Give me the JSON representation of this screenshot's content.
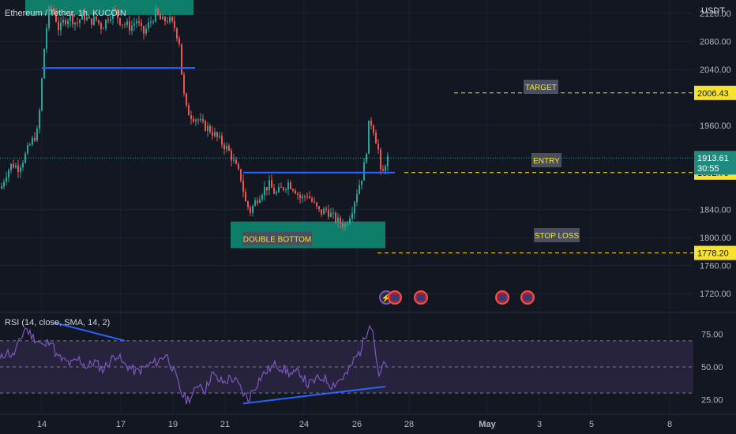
{
  "symbol_title": "Ethereum / Tether, 1h, KUCOIN",
  "currency": "USDT",
  "colors": {
    "background": "#131722",
    "up": "#26a69a",
    "down": "#ef5350",
    "level_line": "#2962ff",
    "dashed": "#f2e22b",
    "zone_fill": "#0e8a73",
    "rsi_line": "#7e57c2",
    "rsi_band": "#2a2540",
    "axis_text": "#b2b5be",
    "label_fill": "#f7e32f"
  },
  "chart_data": [
    {
      "type": "candlestick",
      "title": "Ethereum / Tether, 1h, KUCOIN",
      "ylim": [
        1700,
        2130
      ],
      "y_ticks": [
        "2120.00",
        "2080.00",
        "2040.00",
        "1960.00",
        "1840.00",
        "1800.00",
        "1760.00",
        "1720.00"
      ],
      "x_ticks": [
        "14",
        "17",
        "19",
        "21",
        "24",
        "26",
        "28",
        "May",
        "3",
        "5",
        "8"
      ],
      "current_price": "1913.61",
      "countdown": "30:55",
      "price_path": [
        [
          0,
          1870
        ],
        [
          6,
          1890
        ],
        [
          14,
          1905
        ],
        [
          22,
          1900
        ],
        [
          30,
          1915
        ],
        [
          38,
          1935
        ],
        [
          46,
          1950
        ],
        [
          50,
          1990
        ],
        [
          54,
          2060
        ],
        [
          58,
          2100
        ],
        [
          62,
          2130
        ],
        [
          68,
          2120
        ],
        [
          74,
          2095
        ],
        [
          80,
          2110
        ],
        [
          88,
          2115
        ],
        [
          96,
          2105
        ],
        [
          104,
          2118
        ],
        [
          112,
          2108
        ],
        [
          120,
          2112
        ],
        [
          128,
          2100
        ],
        [
          136,
          2115
        ],
        [
          144,
          2125
        ],
        [
          150,
          2110
        ],
        [
          156,
          2105
        ],
        [
          164,
          2100
        ],
        [
          172,
          2110
        ],
        [
          180,
          2090
        ],
        [
          188,
          2105
        ],
        [
          196,
          2120
        ],
        [
          204,
          2108
        ],
        [
          212,
          2112
        ],
        [
          220,
          2100
        ],
        [
          226,
          2080
        ],
        [
          230,
          2020
        ],
        [
          234,
          1985
        ],
        [
          240,
          1975
        ],
        [
          248,
          1970
        ],
        [
          256,
          1960
        ],
        [
          264,
          1955
        ],
        [
          272,
          1945
        ],
        [
          280,
          1935
        ],
        [
          288,
          1925
        ],
        [
          296,
          1905
        ],
        [
          304,
          1885
        ],
        [
          310,
          1850
        ],
        [
          316,
          1838
        ],
        [
          324,
          1855
        ],
        [
          332,
          1868
        ],
        [
          340,
          1875
        ],
        [
          348,
          1862
        ],
        [
          356,
          1870
        ],
        [
          364,
          1878
        ],
        [
          372,
          1870
        ],
        [
          380,
          1855
        ],
        [
          388,
          1862
        ],
        [
          396,
          1848
        ],
        [
          404,
          1835
        ],
        [
          412,
          1840
        ],
        [
          420,
          1830
        ],
        [
          428,
          1822
        ],
        [
          436,
          1818
        ],
        [
          444,
          1838
        ],
        [
          452,
          1870
        ],
        [
          458,
          1890
        ],
        [
          462,
          1915
        ],
        [
          466,
          1960
        ],
        [
          470,
          1965
        ],
        [
          474,
          1945
        ],
        [
          478,
          1925
        ],
        [
          482,
          1880
        ],
        [
          486,
          1905
        ],
        [
          490,
          1913
        ]
      ],
      "annotations": {
        "resistance": 2042,
        "neckline": 1892.7,
        "top_zone": [
          2120,
          2145
        ],
        "bottom_zone": [
          1785,
          1823
        ],
        "target": "2006.43",
        "entry": "1892.70",
        "stop_loss": "1778.20",
        "target_label": "TARGET",
        "entry_label": "ENTRY",
        "stop_loss_label": "STOP LOSS",
        "zone_label": "DOUBLE BOTTOM"
      }
    },
    {
      "type": "line",
      "title": "RSI (14, close, SMA, 14, 2)",
      "ylim": [
        18,
        88
      ],
      "y_ticks": [
        "75.00",
        "50.00",
        "25.00"
      ],
      "bands": [
        70,
        50,
        30
      ],
      "values_path": [
        [
          0,
          55
        ],
        [
          8,
          62
        ],
        [
          16,
          58
        ],
        [
          24,
          68
        ],
        [
          32,
          80
        ],
        [
          40,
          74
        ],
        [
          48,
          70
        ],
        [
          56,
          65
        ],
        [
          64,
          72
        ],
        [
          72,
          58
        ],
        [
          80,
          55
        ],
        [
          90,
          52
        ],
        [
          100,
          56
        ],
        [
          110,
          50
        ],
        [
          120,
          54
        ],
        [
          130,
          48
        ],
        [
          140,
          55
        ],
        [
          148,
          60
        ],
        [
          156,
          52
        ],
        [
          164,
          50
        ],
        [
          172,
          46
        ],
        [
          180,
          48
        ],
        [
          190,
          52
        ],
        [
          200,
          54
        ],
        [
          210,
          60
        ],
        [
          218,
          50
        ],
        [
          224,
          40
        ],
        [
          230,
          30
        ],
        [
          236,
          25
        ],
        [
          244,
          28
        ],
        [
          252,
          38
        ],
        [
          260,
          32
        ],
        [
          268,
          45
        ],
        [
          276,
          40
        ],
        [
          284,
          38
        ],
        [
          292,
          42
        ],
        [
          300,
          38
        ],
        [
          308,
          30
        ],
        [
          314,
          25
        ],
        [
          320,
          32
        ],
        [
          330,
          42
        ],
        [
          340,
          48
        ],
        [
          350,
          52
        ],
        [
          360,
          48
        ],
        [
          370,
          44
        ],
        [
          380,
          46
        ],
        [
          390,
          36
        ],
        [
          400,
          40
        ],
        [
          410,
          42
        ],
        [
          420,
          36
        ],
        [
          430,
          40
        ],
        [
          440,
          45
        ],
        [
          448,
          55
        ],
        [
          456,
          62
        ],
        [
          462,
          72
        ],
        [
          468,
          85
        ],
        [
          472,
          78
        ],
        [
          476,
          60
        ],
        [
          480,
          40
        ],
        [
          484,
          50
        ],
        [
          490,
          52
        ]
      ],
      "divergence_high": [
        [
          68,
          84
        ],
        [
          158,
          70
        ]
      ],
      "divergence_low": [
        [
          308,
          22
        ],
        [
          488,
          35
        ]
      ]
    }
  ]
}
